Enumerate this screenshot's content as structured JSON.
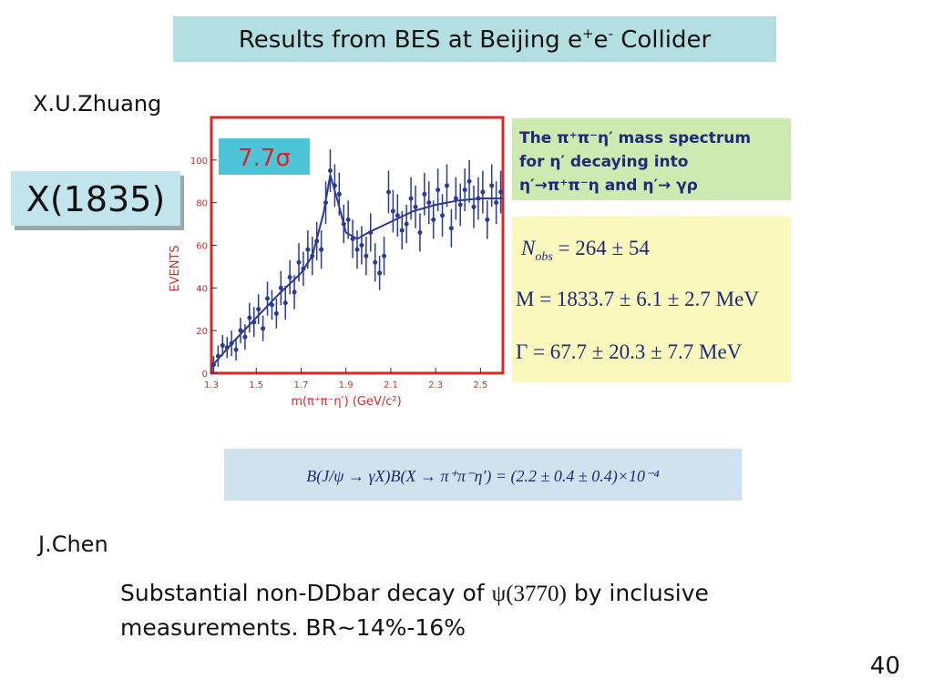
{
  "slide": {
    "title": {
      "a": "Results from BES at Beijing e",
      "b": "+",
      "c": "e",
      "d": "-",
      "e": " Collider"
    },
    "author1": "X.U.Zhuang",
    "green_box": [
      "The π⁺π⁻η′ mass spectrum",
      "for η′ decaying into",
      "η′→π⁺π⁻η and η′→ γρ"
    ],
    "yellow_box": {
      "n_sym": "N",
      "n_sub": "obs",
      "n_rest": " = 264 ± 54",
      "m": "M  = 1833.7 ± 6.1 ± 2.7 MeV",
      "gamma": "Γ = 67.7 ± 20.3 ± 7.7 MeV"
    },
    "formula": "B(J/ψ → γX)B(X → π⁺π⁻η′) = (2.2 ± 0.4 ± 0.4)×10⁻⁴",
    "author2": "J.Chen",
    "body": {
      "a": "Substantial non-DDbar decay of ",
      "b": "ψ(3770)",
      "c": " by inclusive",
      "d": "measurements.  BR~14%-16%"
    },
    "page_number": "40"
  },
  "chart_data": {
    "type": "scatter",
    "xlabel": "m(π⁺π⁻η′) (GeV/c²)",
    "ylabel": "EVENTS",
    "annotations": [
      "7.7σ",
      "X(1835)"
    ],
    "xlim": [
      1.3,
      2.6
    ],
    "ylim": [
      0,
      120
    ],
    "xticks": [
      1.3,
      1.5,
      1.7,
      1.9,
      2.1,
      2.3,
      2.5
    ],
    "yticks": [
      0,
      20,
      40,
      60,
      80,
      100
    ],
    "series": [
      {
        "color": "#2a3a96",
        "x": [
          1.31,
          1.33,
          1.35,
          1.37,
          1.39,
          1.41,
          1.43,
          1.45,
          1.47,
          1.49,
          1.51,
          1.53,
          1.55,
          1.57,
          1.59,
          1.61,
          1.63,
          1.65,
          1.67,
          1.69,
          1.71,
          1.73,
          1.75,
          1.77,
          1.79,
          1.81,
          1.83,
          1.85,
          1.87,
          1.89,
          1.91,
          1.93,
          1.95,
          1.97,
          1.99,
          2.01,
          2.03,
          2.05,
          2.07,
          2.09,
          2.11,
          2.13,
          2.15,
          2.17,
          2.19,
          2.21,
          2.23,
          2.25,
          2.27,
          2.29,
          2.31,
          2.33,
          2.35,
          2.37,
          2.39,
          2.41,
          2.43,
          2.45,
          2.47,
          2.49,
          2.51,
          2.53,
          2.55,
          2.57,
          2.59
        ],
        "values": [
          4,
          8,
          13,
          12,
          14,
          11,
          20,
          17,
          26,
          24,
          30,
          21,
          35,
          32,
          28,
          40,
          33,
          45,
          38,
          52,
          49,
          58,
          55,
          62,
          58,
          80,
          95,
          88,
          84,
          70,
          72,
          63,
          58,
          60,
          55,
          66,
          52,
          47,
          55,
          85,
          76,
          74,
          67,
          70,
          82,
          78,
          66,
          84,
          80,
          72,
          86,
          74,
          88,
          68,
          82,
          79,
          86,
          90,
          78,
          82,
          85,
          72,
          88,
          80,
          85
        ],
        "errors": [
          4,
          5,
          5,
          5,
          6,
          5,
          6,
          6,
          7,
          7,
          7,
          6,
          8,
          7,
          7,
          8,
          8,
          8,
          8,
          9,
          8,
          9,
          9,
          9,
          9,
          10,
          10,
          10,
          10,
          9,
          9,
          9,
          9,
          9,
          9,
          9,
          9,
          8,
          9,
          10,
          10,
          10,
          9,
          9,
          10,
          10,
          9,
          10,
          10,
          9,
          10,
          10,
          10,
          9,
          10,
          10,
          10,
          10,
          10,
          10,
          10,
          9,
          10,
          10,
          10
        ]
      },
      {
        "type": "line",
        "color": "#2a3a96",
        "x": [
          1.3,
          1.4,
          1.5,
          1.6,
          1.7,
          1.75,
          1.8,
          1.83,
          1.86,
          1.9,
          1.95,
          2.0,
          2.1,
          2.2,
          2.3,
          2.4,
          2.5,
          2.6
        ],
        "values": [
          3,
          15,
          26,
          37,
          47,
          55,
          75,
          93,
          82,
          66,
          63,
          66,
          71,
          76,
          79,
          81,
          82,
          82
        ]
      }
    ]
  }
}
